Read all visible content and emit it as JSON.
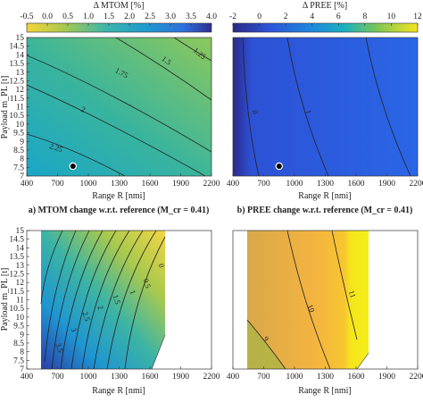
{
  "chart_data": [
    {
      "type": "heatmap",
      "panel": "a",
      "colorbar": {
        "title": "Δ MTOM [%]",
        "ticks": [
          "-0.5",
          "0.0",
          "0.5",
          "1.0",
          "1.5",
          "2.0",
          "2.5",
          "3.0",
          "3.5",
          "4.0"
        ],
        "range": [
          -0.5,
          4.0
        ]
      },
      "xlabel": "Range R [nmi]",
      "ylabel": "Payload m_PL [t]",
      "xticks": [
        "400",
        "700",
        "1000",
        "1300",
        "1600",
        "1900",
        "2200"
      ],
      "yticks": [
        "7",
        "7.5",
        "8",
        "8.5",
        "9",
        "9.5",
        "10",
        "10.5",
        "11",
        "11.5",
        "12",
        "12.5",
        "13",
        "13.5",
        "14",
        "14.5",
        "15"
      ],
      "xlim": [
        400,
        2200
      ],
      "ylim": [
        7,
        15
      ],
      "contour_labels": [
        "1.25",
        "1.5",
        "1.75",
        "2",
        "2.25"
      ],
      "marker": {
        "x": 850,
        "y": 7.55
      },
      "caption": "a) MTOM change w.r.t. reference (M_cr = 0.41)"
    },
    {
      "type": "heatmap",
      "panel": "b",
      "colorbar": {
        "title": "Δ PREE [%]",
        "ticks": [
          "-2",
          "0",
          "2",
          "4",
          "6",
          "8",
          "10",
          "12"
        ],
        "range": [
          -2,
          12
        ]
      },
      "xlabel": "Range R [nmi]",
      "xticks": [
        "400",
        "700",
        "1000",
        "1300",
        "1600",
        "1900",
        "2200"
      ],
      "xlim": [
        400,
        2200
      ],
      "ylim": [
        7,
        15
      ],
      "contour_labels": [
        "0",
        "1"
      ],
      "marker": {
        "x": 850,
        "y": 7.55
      },
      "caption": "b) PREE change w.r.t. reference (M_cr = 0.41)"
    },
    {
      "type": "heatmap",
      "panel": "c",
      "xlabel": "Range R [nmi]",
      "ylabel": "Payload m_PL [t]",
      "xticks": [
        "400",
        "700",
        "1000",
        "1300",
        "1600",
        "1900",
        "2200"
      ],
      "yticks": [
        "7",
        "7.5",
        "8",
        "8.5",
        "9",
        "9.5",
        "10",
        "10.5",
        "11",
        "11.5",
        "12",
        "12.5",
        "13",
        "13.5",
        "14",
        "14.5",
        "15"
      ],
      "xlim": [
        400,
        2200
      ],
      "ylim": [
        7,
        15
      ],
      "contour_labels": [
        "0",
        "0.5",
        "1",
        "1.5",
        "2",
        "2.5",
        "3",
        "3.5"
      ]
    },
    {
      "type": "heatmap",
      "panel": "d",
      "xlabel": "Range R [nmi]",
      "xticks": [
        "400",
        "700",
        "1000",
        "1300",
        "1600",
        "1900",
        "2200"
      ],
      "xlim": [
        400,
        2200
      ],
      "ylim": [
        7,
        15
      ],
      "contour_labels": [
        "9",
        "10",
        "11"
      ]
    }
  ]
}
